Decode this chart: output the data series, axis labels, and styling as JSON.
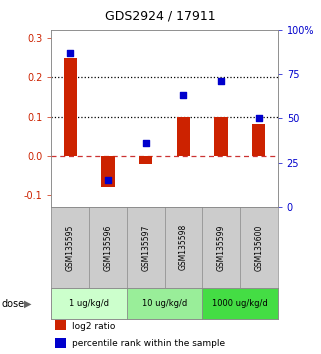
{
  "title": "GDS2924 / 17911",
  "samples": [
    "GSM135595",
    "GSM135596",
    "GSM135597",
    "GSM135598",
    "GSM135599",
    "GSM135600"
  ],
  "log2_ratio": [
    0.25,
    -0.08,
    -0.02,
    0.1,
    0.1,
    0.08
  ],
  "percentile_rank": [
    87,
    15,
    36,
    63,
    71,
    50
  ],
  "bar_color": "#cc2200",
  "dot_color": "#0000cc",
  "ylim_left": [
    -0.13,
    0.32
  ],
  "ylim_right": [
    0,
    100
  ],
  "yticks_left": [
    -0.1,
    0.0,
    0.1,
    0.2,
    0.3
  ],
  "yticks_right": [
    0,
    25,
    50,
    75,
    100
  ],
  "dose_groups": [
    {
      "label": "1 ug/kg/d",
      "color": "#ccffcc",
      "start": 0,
      "end": 1
    },
    {
      "label": "10 ug/kg/d",
      "color": "#99ee99",
      "start": 2,
      "end": 3
    },
    {
      "label": "1000 ug/kg/d",
      "color": "#44dd44",
      "start": 4,
      "end": 5
    }
  ],
  "legend_bar_label": "log2 ratio",
  "legend_dot_label": "percentile rank within the sample",
  "sample_box_color": "#cccccc",
  "bar_color_red": "#cc2200",
  "dot_color_blue": "#0000cc"
}
